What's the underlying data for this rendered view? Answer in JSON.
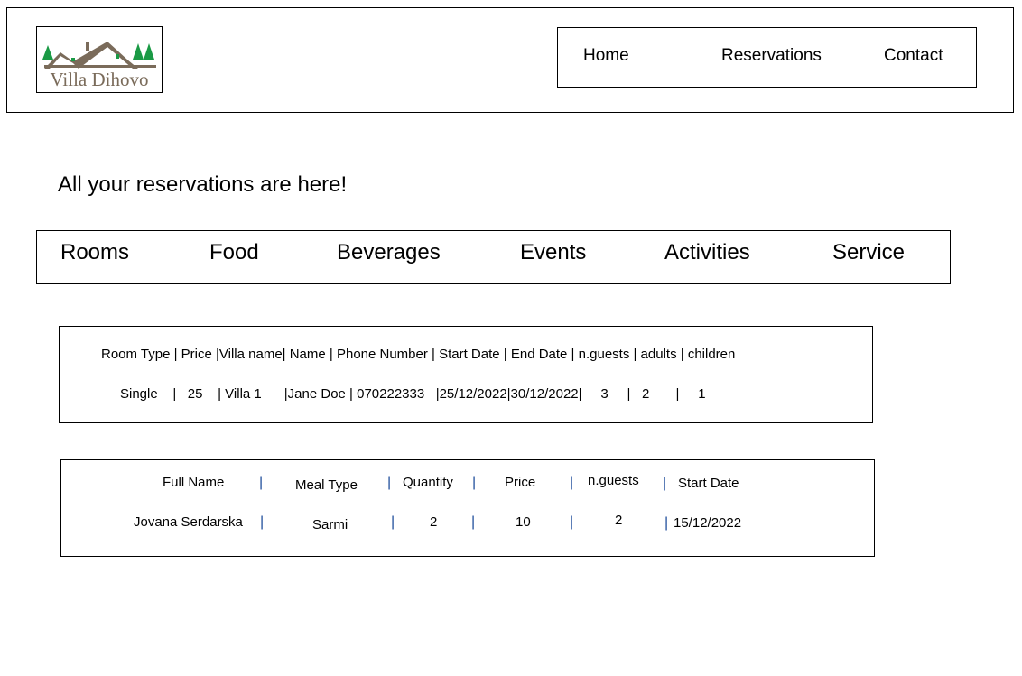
{
  "header": {
    "logo_text": "Villa Dihovo",
    "nav": [
      "Home",
      "Reservations",
      "Contact"
    ]
  },
  "page_title": "All your reservations are here!",
  "categories": [
    "Rooms",
    "Food",
    "Beverages",
    "Events",
    "Activities",
    "Service"
  ],
  "rooms_table": {
    "header": "Room Type | Price |Villa name| Name | Phone Number | Start Date | End Date | n.guests | adults | children",
    "row": "Single    |   25    | Villa 1      |Jane Doe | 070222333   |25/12/2022|30/12/2022|     3     |   2       |     1"
  },
  "food_table": {
    "headers": [
      "Full Name",
      "Meal Type",
      "Quantity",
      "Price",
      "n.guests",
      "Start Date"
    ],
    "row": [
      "Jovana Serdarska",
      "Sarmi",
      "2",
      "10",
      "2",
      "15/12/2022"
    ],
    "separator": "|"
  },
  "colors": {
    "logo_brown": "#7a6b5a",
    "logo_green": "#1a9a45",
    "separator_blue": "#1f4e9c"
  }
}
